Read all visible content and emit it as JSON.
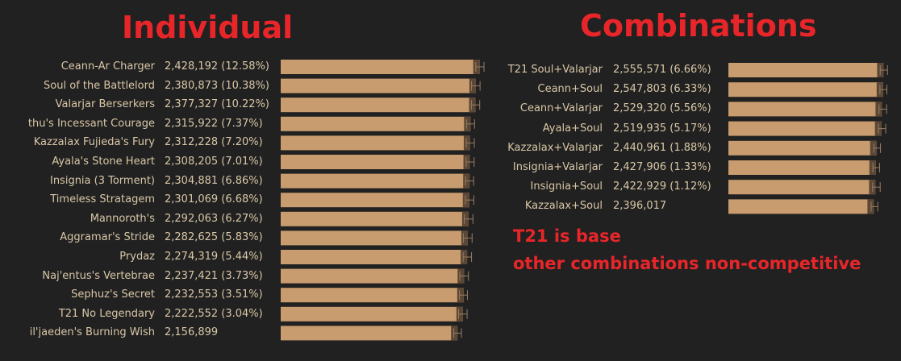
{
  "headings": {
    "individual": "Individual",
    "combinations": "Combinations"
  },
  "notes": {
    "line1": "T21 is base",
    "line2": "other combinations non-competitive"
  },
  "colors": {
    "background": "#212121",
    "bar_fill": "#c89c6e",
    "bar_cap": "#5b4735",
    "whisker": "#9a7d62",
    "text": "#d9c7a7",
    "heading": "#e8262a"
  },
  "chart_data": [
    {
      "type": "bar",
      "orientation": "horizontal",
      "title": "Individual",
      "categories": [
        "Ceann-Ar Charger",
        "Soul of the Battlelord",
        "Valarjar Berserkers",
        "thu's Incessant Courage",
        "Kazzalax Fujieda's Fury",
        "Ayala's Stone Heart",
        "Insignia (3 Torment)",
        "Timeless Stratagem",
        "Mannoroth's",
        "Aggramar's Stride",
        "Prydaz",
        "Naj'entus's Vertebrae",
        "Sephuz's Secret",
        "T21 No Legendary",
        "il'jaeden's Burning Wish"
      ],
      "values": [
        2428192,
        2380873,
        2377327,
        2315922,
        2312228,
        2308205,
        2304881,
        2301069,
        2292063,
        2282625,
        2274319,
        2237421,
        2232553,
        2222552,
        2156899
      ],
      "value_labels": [
        "2,428,192 (12.58%)",
        "2,380,873 (10.38%)",
        "2,377,327 (10.22%)",
        "2,315,922 (7.37%)",
        "2,312,228 (7.20%)",
        "2,308,205 (7.01%)",
        "2,304,881 (6.86%)",
        "2,301,069 (6.68%)",
        "2,292,063 (6.27%)",
        "2,282,625 (5.83%)",
        "2,274,319 (5.44%)",
        "2,237,421 (3.73%)",
        "2,232,553 (3.51%)",
        "2,222,552 (3.04%)",
        "2,156,899"
      ],
      "error_low": [
        2380000,
        2328000,
        2327000,
        2266000,
        2262000,
        2262000,
        2255000,
        2253000,
        2240000,
        2228000,
        2226000,
        2185000,
        2181000,
        2170000,
        2110000
      ],
      "error_high": [
        2480000,
        2432000,
        2428000,
        2365000,
        2362000,
        2360000,
        2354000,
        2356000,
        2345000,
        2335000,
        2328000,
        2290000,
        2278000,
        2274000,
        2205000
      ],
      "xlim": [
        0,
        2480000
      ]
    },
    {
      "type": "bar",
      "orientation": "horizontal",
      "title": "Combinations",
      "categories": [
        "T21 Soul+Valarjar",
        "Ceann+Soul",
        "Ceann+Valarjar",
        "Ayala+Soul",
        "Kazzalax+Valarjar",
        "Insignia+Valarjar",
        "Insignia+Soul",
        "Kazzalax+Soul"
      ],
      "values": [
        2555571,
        2547803,
        2529320,
        2519935,
        2440961,
        2427906,
        2422929,
        2396017
      ],
      "value_labels": [
        "2,555,571 (6.66%)",
        "2,547,803 (6.33%)",
        "2,529,320 (5.56%)",
        "2,519,935 (5.17%)",
        "2,440,961 (1.88%)",
        "2,427,906 (1.33%)",
        "2,422,929 (1.12%)",
        "2,396,017"
      ],
      "error_low": [
        2500000,
        2495000,
        2480000,
        2470000,
        2395000,
        2380000,
        2375000,
        2350000
      ],
      "error_high": [
        2620000,
        2610000,
        2605000,
        2590000,
        2505000,
        2490000,
        2500000,
        2460000
      ],
      "xlim": [
        0,
        2630000
      ]
    }
  ]
}
